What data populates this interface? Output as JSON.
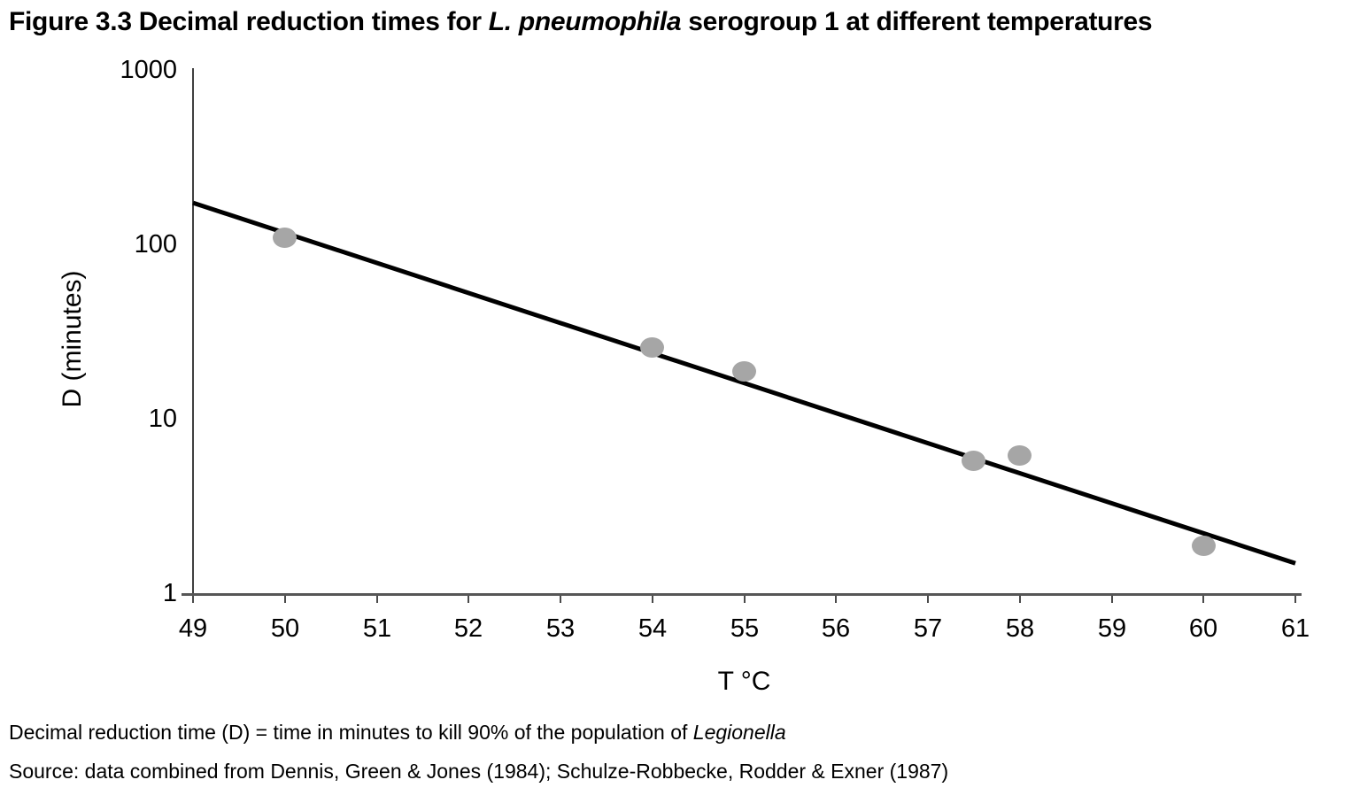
{
  "figure_title": {
    "prefix": "Figure 3.3 Decimal reduction times for ",
    "italic": "L. pneumophila",
    "suffix": " serogroup 1 at different temperatures"
  },
  "chart_data": {
    "type": "scatter",
    "title": "Figure 3.3 Decimal reduction times for L. pneumophila serogroup 1 at different temperatures",
    "xlabel": "T °C",
    "ylabel": "D (minutes)",
    "x_scale": "linear",
    "y_scale": "log",
    "xlim": [
      49,
      61
    ],
    "ylim": [
      1,
      1000
    ],
    "x_ticks": [
      49,
      50,
      51,
      52,
      53,
      54,
      55,
      56,
      57,
      58,
      59,
      60,
      61
    ],
    "y_ticks": [
      1000,
      100,
      10,
      1
    ],
    "grid": false,
    "legend": false,
    "series": [
      {
        "name": "observed D-values",
        "type": "scatter",
        "marker_color": "#a6a6a6",
        "points": [
          {
            "x": 50,
            "y": 110
          },
          {
            "x": 54,
            "y": 26
          },
          {
            "x": 55,
            "y": 19
          },
          {
            "x": 57.5,
            "y": 5.8
          },
          {
            "x": 58,
            "y": 6.2
          },
          {
            "x": 60,
            "y": 1.9
          }
        ]
      },
      {
        "name": "regression line",
        "type": "line",
        "color": "#000000",
        "points": [
          {
            "x": 49,
            "y": 175
          },
          {
            "x": 61,
            "y": 1.5
          }
        ]
      }
    ]
  },
  "notes": {
    "definition_prefix": "Decimal reduction time (D) = time in minutes to kill 90% of the population of ",
    "definition_italic": "Legionella",
    "source": "Source: data combined from Dennis, Green & Jones (1984); Schulze-Robbecke, Rodder & Exner (1987)"
  },
  "colors": {
    "marker": "#a6a6a6",
    "trend_line": "#000000",
    "axis": "#4a4a4a",
    "text": "#000000",
    "background": "#ffffff"
  }
}
